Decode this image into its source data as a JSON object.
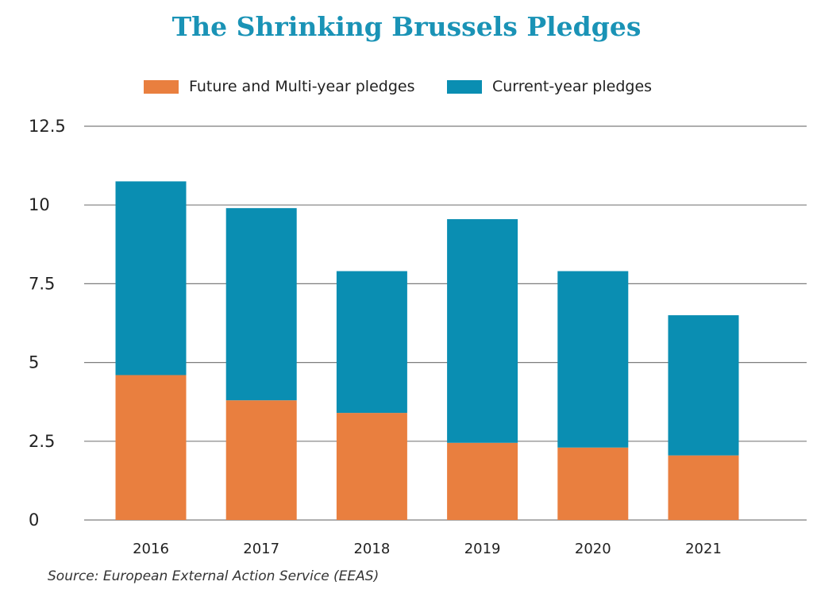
{
  "chart_data": {
    "type": "bar",
    "stacked": true,
    "title": "The Shrinking Brussels Pledges",
    "source": "Source: European External Action Service (EEAS)",
    "categories": [
      "2016",
      "2017",
      "2018",
      "2019",
      "2020",
      "2021"
    ],
    "series": [
      {
        "name": "Future and Multi-year pledges",
        "color": "#e97f3f",
        "values": [
          4.6,
          3.8,
          3.4,
          2.45,
          2.3,
          2.05
        ]
      },
      {
        "name": "Current-year pledges",
        "color": "#0a8eb2",
        "values": [
          6.15,
          6.1,
          4.5,
          7.1,
          5.6,
          4.45
        ]
      }
    ],
    "yticks": [
      "0",
      "2.5",
      "5",
      "7.5",
      "10",
      "12.5"
    ],
    "ytick_values": [
      0,
      2.5,
      5,
      7.5,
      10,
      12.5
    ],
    "ylim": [
      0,
      12.5
    ],
    "grid": true,
    "legend_position": "top-center",
    "xlabel": "",
    "ylabel": ""
  }
}
